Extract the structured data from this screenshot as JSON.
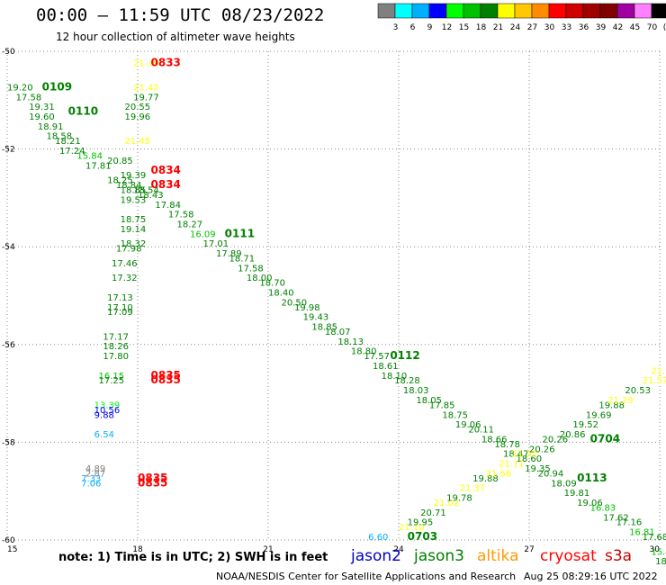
{
  "header": {
    "title": "00:00 – 11:59 UTC 08/23/2022",
    "subtitle": "12 hour collection of altimeter wave heights"
  },
  "colorbar": {
    "labels": [
      "3",
      "6",
      "9",
      "12",
      "15",
      "18",
      "21",
      "24",
      "27",
      "30",
      "33",
      "36",
      "39",
      "42",
      "45",
      "70",
      "(ft)"
    ],
    "colors": [
      "#808080",
      "#00ffff",
      "#00b0ff",
      "#0000ff",
      "#00ff00",
      "#00c000",
      "#008000",
      "#ffff00",
      "#ffc800",
      "#ff8c00",
      "#ff0000",
      "#d00000",
      "#a00000",
      "#800000",
      "#a000a0",
      "#ff80ff",
      "#000000"
    ]
  },
  "footer": {
    "note": "note: 1) Time is in UTC; 2) SWH is in feet",
    "satellites": [
      {
        "name": "jason2",
        "color": "#0000cc"
      },
      {
        "name": "jason3",
        "color": "#008000"
      },
      {
        "name": "altika",
        "color": "#ff9900"
      },
      {
        "name": "cryosat",
        "color": "#ff0000"
      },
      {
        "name": "s3a",
        "color": "#cc0000"
      }
    ],
    "credit": "NOAA/NESDIS Center for Satellite Applications and Research",
    "timestamp": "Aug 25 08:29:16 UTC 2022"
  },
  "chart_data": {
    "type": "scatter",
    "xlim": [
      15,
      30
    ],
    "ylim": [
      -60,
      -50
    ],
    "xticks": [
      "15",
      "18",
      "21",
      "24",
      "27",
      "30"
    ],
    "yticks": [
      "-50",
      "-52",
      "-54",
      "-56",
      "-58",
      "-60"
    ],
    "grid": "dotted",
    "labels": [
      {
        "x": 15.0,
        "y": -50.8,
        "text": "19.20",
        "color": "#008000"
      },
      {
        "x": 15.8,
        "y": -50.8,
        "text": "0109",
        "color": "#008000",
        "pass": true
      },
      {
        "x": 15.2,
        "y": -51.0,
        "text": "17.58",
        "color": "#008000"
      },
      {
        "x": 15.5,
        "y": -51.2,
        "text": "19.31",
        "color": "#008000"
      },
      {
        "x": 15.5,
        "y": -51.4,
        "text": "19.60",
        "color": "#008000"
      },
      {
        "x": 16.4,
        "y": -51.3,
        "text": "0110",
        "color": "#008000",
        "pass": true
      },
      {
        "x": 15.7,
        "y": -51.6,
        "text": "18.91",
        "color": "#008000"
      },
      {
        "x": 15.9,
        "y": -51.8,
        "text": "18.58",
        "color": "#008000"
      },
      {
        "x": 16.1,
        "y": -51.9,
        "text": "18.21",
        "color": "#008000"
      },
      {
        "x": 16.2,
        "y": -52.1,
        "text": "17.24",
        "color": "#008000"
      },
      {
        "x": 16.6,
        "y": -52.2,
        "text": "15.84",
        "color": "#00c000"
      },
      {
        "x": 16.8,
        "y": -52.4,
        "text": "17.81",
        "color": "#008000"
      },
      {
        "x": 17.3,
        "y": -52.3,
        "text": "20.85",
        "color": "#008000"
      },
      {
        "x": 17.6,
        "y": -52.6,
        "text": "19.39",
        "color": "#008000"
      },
      {
        "x": 17.3,
        "y": -52.7,
        "text": "18.25",
        "color": "#008000"
      },
      {
        "x": 17.5,
        "y": -52.8,
        "text": "18.84",
        "color": "#008000"
      },
      {
        "x": 17.6,
        "y": -52.9,
        "text": "18.85",
        "color": "#008000"
      },
      {
        "x": 17.9,
        "y": -52.9,
        "text": "18.54",
        "color": "#008000"
      },
      {
        "x": 17.6,
        "y": -53.1,
        "text": "19.53",
        "color": "#008000"
      },
      {
        "x": 18.0,
        "y": -53.0,
        "text": "18.43",
        "color": "#008000"
      },
      {
        "x": 18.4,
        "y": -53.2,
        "text": "17.84",
        "color": "#008000"
      },
      {
        "x": 18.7,
        "y": -53.4,
        "text": "17.58",
        "color": "#008000"
      },
      {
        "x": 18.9,
        "y": -53.6,
        "text": "18.27",
        "color": "#008000"
      },
      {
        "x": 19.2,
        "y": -53.8,
        "text": "16.09",
        "color": "#00c000"
      },
      {
        "x": 20.0,
        "y": -53.8,
        "text": "0111",
        "color": "#008000",
        "pass": true
      },
      {
        "x": 19.5,
        "y": -54.0,
        "text": "17.01",
        "color": "#008000"
      },
      {
        "x": 19.8,
        "y": -54.2,
        "text": "17.89",
        "color": "#008000"
      },
      {
        "x": 20.1,
        "y": -54.3,
        "text": "18.71",
        "color": "#008000"
      },
      {
        "x": 20.3,
        "y": -54.5,
        "text": "17.58",
        "color": "#008000"
      },
      {
        "x": 20.5,
        "y": -54.7,
        "text": "18.00",
        "color": "#008000"
      },
      {
        "x": 20.8,
        "y": -54.8,
        "text": "18.70",
        "color": "#008000"
      },
      {
        "x": 21.0,
        "y": -55.0,
        "text": "18.40",
        "color": "#008000"
      },
      {
        "x": 21.3,
        "y": -55.2,
        "text": "20.50",
        "color": "#008000"
      },
      {
        "x": 21.6,
        "y": -55.3,
        "text": "19.98",
        "color": "#008000"
      },
      {
        "x": 21.8,
        "y": -55.5,
        "text": "19.43",
        "color": "#008000"
      },
      {
        "x": 22.0,
        "y": -55.7,
        "text": "18.85",
        "color": "#008000"
      },
      {
        "x": 22.3,
        "y": -55.8,
        "text": "18.07",
        "color": "#008000"
      },
      {
        "x": 22.6,
        "y": -56.0,
        "text": "18.13",
        "color": "#008000"
      },
      {
        "x": 22.9,
        "y": -56.2,
        "text": "18.80",
        "color": "#008000"
      },
      {
        "x": 23.2,
        "y": -56.3,
        "text": "17.57",
        "color": "#008000"
      },
      {
        "x": 23.8,
        "y": -56.3,
        "text": "0112",
        "color": "#008000",
        "pass": true
      },
      {
        "x": 23.4,
        "y": -56.5,
        "text": "18.61",
        "color": "#008000"
      },
      {
        "x": 23.6,
        "y": -56.7,
        "text": "18.10",
        "color": "#008000"
      },
      {
        "x": 23.9,
        "y": -56.8,
        "text": "18.28",
        "color": "#008000"
      },
      {
        "x": 24.1,
        "y": -57.0,
        "text": "18.03",
        "color": "#008000"
      },
      {
        "x": 24.4,
        "y": -57.2,
        "text": "18.05",
        "color": "#008000"
      },
      {
        "x": 24.7,
        "y": -57.3,
        "text": "17.85",
        "color": "#008000"
      },
      {
        "x": 25.0,
        "y": -57.5,
        "text": "18.75",
        "color": "#008000"
      },
      {
        "x": 25.3,
        "y": -57.7,
        "text": "19.06",
        "color": "#008000"
      },
      {
        "x": 25.6,
        "y": -57.8,
        "text": "20.11",
        "color": "#008000"
      },
      {
        "x": 25.9,
        "y": -58.0,
        "text": "18.66",
        "color": "#008000"
      },
      {
        "x": 26.2,
        "y": -58.1,
        "text": "18.78",
        "color": "#008000"
      },
      {
        "x": 26.4,
        "y": -58.3,
        "text": "18.47",
        "color": "#008000"
      },
      {
        "x": 26.7,
        "y": -58.4,
        "text": "18.60",
        "color": "#008000"
      },
      {
        "x": 26.9,
        "y": -58.6,
        "text": "19.35",
        "color": "#008000"
      },
      {
        "x": 27.2,
        "y": -58.7,
        "text": "20.94",
        "color": "#008000"
      },
      {
        "x": 28.1,
        "y": -58.8,
        "text": "0113",
        "color": "#008000",
        "pass": true
      },
      {
        "x": 27.5,
        "y": -58.9,
        "text": "18.09",
        "color": "#008000"
      },
      {
        "x": 27.8,
        "y": -59.1,
        "text": "19.81",
        "color": "#008000"
      },
      {
        "x": 28.1,
        "y": -59.3,
        "text": "19.06",
        "color": "#008000"
      },
      {
        "x": 28.4,
        "y": -59.4,
        "text": "16.83",
        "color": "#00c000"
      },
      {
        "x": 28.7,
        "y": -59.6,
        "text": "17.62",
        "color": "#008000"
      },
      {
        "x": 29.0,
        "y": -59.7,
        "text": "17.16",
        "color": "#008000"
      },
      {
        "x": 29.3,
        "y": -59.9,
        "text": "16.81",
        "color": "#00c000"
      },
      {
        "x": 29.6,
        "y": -60.0,
        "text": "17.68",
        "color": "#008000"
      },
      {
        "x": 29.8,
        "y": -60.3,
        "text": "15.47",
        "color": "#00c000"
      },
      {
        "x": 29.9,
        "y": -60.5,
        "text": "18",
        "color": "#008000"
      },
      {
        "x": 17.9,
        "y": -50.3,
        "text": "21.39",
        "color": "#ffff00"
      },
      {
        "x": 18.3,
        "y": -50.3,
        "text": "0833",
        "color": "#ff0000",
        "pass": true
      },
      {
        "x": 17.9,
        "y": -50.8,
        "text": "21.42",
        "color": "#ffff00"
      },
      {
        "x": 17.9,
        "y": -51.0,
        "text": "19.77",
        "color": "#008000"
      },
      {
        "x": 17.7,
        "y": -51.2,
        "text": "20.55",
        "color": "#008000"
      },
      {
        "x": 17.7,
        "y": -51.4,
        "text": "19.96",
        "color": "#008000"
      },
      {
        "x": 17.7,
        "y": -51.9,
        "text": "21.45",
        "color": "#ffff00"
      },
      {
        "x": 18.3,
        "y": -52.5,
        "text": "0834",
        "color": "#ff0000",
        "pass": true
      },
      {
        "x": 18.3,
        "y": -52.8,
        "text": "0834",
        "color": "#ff0000",
        "pass": true
      },
      {
        "x": 17.6,
        "y": -53.5,
        "text": "18.75",
        "color": "#008000"
      },
      {
        "x": 17.6,
        "y": -53.7,
        "text": "19.14",
        "color": "#008000"
      },
      {
        "x": 17.6,
        "y": -54.0,
        "text": "18.32",
        "color": "#008000"
      },
      {
        "x": 17.5,
        "y": -54.1,
        "text": "17.98",
        "color": "#008000"
      },
      {
        "x": 17.4,
        "y": -54.4,
        "text": "17.46",
        "color": "#008000"
      },
      {
        "x": 17.4,
        "y": -54.7,
        "text": "17.32",
        "color": "#008000"
      },
      {
        "x": 17.3,
        "y": -55.1,
        "text": "17.13",
        "color": "#008000"
      },
      {
        "x": 17.3,
        "y": -55.3,
        "text": "17.10",
        "color": "#008000"
      },
      {
        "x": 17.3,
        "y": -55.4,
        "text": "17.09",
        "color": "#008000"
      },
      {
        "x": 17.2,
        "y": -55.9,
        "text": "17.17",
        "color": "#008000"
      },
      {
        "x": 17.2,
        "y": -56.1,
        "text": "18.26",
        "color": "#008000"
      },
      {
        "x": 17.2,
        "y": -56.3,
        "text": "17.80",
        "color": "#008000"
      },
      {
        "x": 17.1,
        "y": -56.7,
        "text": "16.15",
        "color": "#00c000"
      },
      {
        "x": 17.1,
        "y": -56.8,
        "text": "17.25",
        "color": "#008000"
      },
      {
        "x": 18.3,
        "y": -56.7,
        "text": "0835",
        "color": "#ff0000",
        "pass": true
      },
      {
        "x": 18.3,
        "y": -56.8,
        "text": "0835",
        "color": "#ff0000",
        "pass": true
      },
      {
        "x": 17.0,
        "y": -57.3,
        "text": "13.39",
        "color": "#00ff00"
      },
      {
        "x": 17.0,
        "y": -57.4,
        "text": "10.56",
        "color": "#0000ff"
      },
      {
        "x": 17.0,
        "y": -57.5,
        "text": "9.88",
        "color": "#0000ff"
      },
      {
        "x": 17.0,
        "y": -57.9,
        "text": "6.54",
        "color": "#00b0ff"
      },
      {
        "x": 16.8,
        "y": -58.6,
        "text": "4.89",
        "color": "#808080"
      },
      {
        "x": 16.8,
        "y": -58.7,
        "text": "2.87",
        "color": "#808080"
      },
      {
        "x": 16.7,
        "y": -58.8,
        "text": "7.33",
        "color": "#00b0ff"
      },
      {
        "x": 16.7,
        "y": -58.9,
        "text": "7.06",
        "color": "#00b0ff"
      },
      {
        "x": 18.0,
        "y": -58.8,
        "text": "0835",
        "color": "#ff0000",
        "pass": true
      },
      {
        "x": 18.0,
        "y": -58.9,
        "text": "0835",
        "color": "#ff0000",
        "pass": true
      },
      {
        "x": 23.3,
        "y": -60.0,
        "text": "6.60",
        "color": "#00b0ff"
      },
      {
        "x": 24.2,
        "y": -60.0,
        "text": "0703",
        "color": "#008000",
        "pass": true
      },
      {
        "x": 24.0,
        "y": -59.8,
        "text": "21.10",
        "color": "#ffff00"
      },
      {
        "x": 24.2,
        "y": -59.7,
        "text": "19.95",
        "color": "#008000"
      },
      {
        "x": 24.5,
        "y": -59.5,
        "text": "20.71",
        "color": "#008000"
      },
      {
        "x": 24.8,
        "y": -59.3,
        "text": "21.02",
        "color": "#ffff00"
      },
      {
        "x": 25.1,
        "y": -59.2,
        "text": "19.78",
        "color": "#008000"
      },
      {
        "x": 25.4,
        "y": -59.0,
        "text": "21.37",
        "color": "#ffff00"
      },
      {
        "x": 25.7,
        "y": -58.8,
        "text": "19.88",
        "color": "#008000"
      },
      {
        "x": 26.0,
        "y": -58.7,
        "text": "21.56",
        "color": "#ffff00"
      },
      {
        "x": 26.3,
        "y": -58.5,
        "text": "21.11",
        "color": "#ffff00"
      },
      {
        "x": 26.6,
        "y": -58.3,
        "text": "21.32",
        "color": "#ffff00"
      },
      {
        "x": 27.0,
        "y": -58.2,
        "text": "20.26",
        "color": "#008000"
      },
      {
        "x": 27.3,
        "y": -58.0,
        "text": "20.26",
        "color": "#008000"
      },
      {
        "x": 27.7,
        "y": -57.9,
        "text": "20.86",
        "color": "#008000"
      },
      {
        "x": 28.4,
        "y": -58.0,
        "text": "0704",
        "color": "#008000",
        "pass": true
      },
      {
        "x": 28.0,
        "y": -57.7,
        "text": "19.52",
        "color": "#008000"
      },
      {
        "x": 28.3,
        "y": -57.5,
        "text": "19.69",
        "color": "#008000"
      },
      {
        "x": 28.6,
        "y": -57.3,
        "text": "19.88",
        "color": "#008000"
      },
      {
        "x": 28.8,
        "y": -57.2,
        "text": "21.29",
        "color": "#ffff00"
      },
      {
        "x": 29.2,
        "y": -57.0,
        "text": "20.53",
        "color": "#008000"
      },
      {
        "x": 29.6,
        "y": -56.8,
        "text": "21.57",
        "color": "#ffff00"
      },
      {
        "x": 29.8,
        "y": -56.6,
        "text": "21.59",
        "color": "#ffff00"
      }
    ]
  }
}
